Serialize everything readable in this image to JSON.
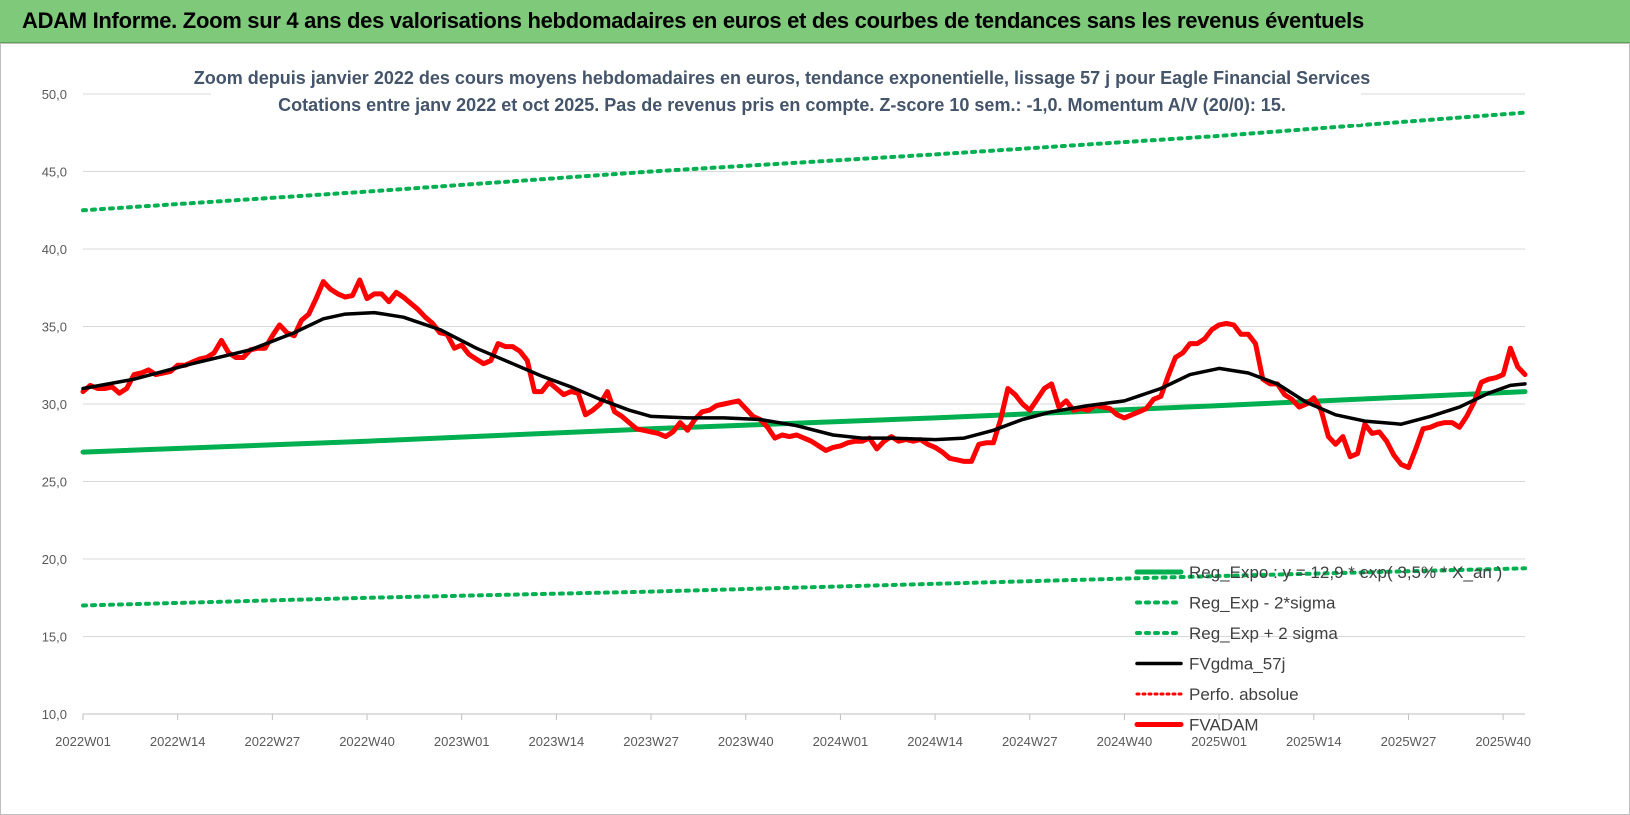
{
  "banner": {
    "title": "ADAM Informe. Zoom sur 4 ans des valorisations hebdomadaires en euros et des courbes de tendances sans les revenus éventuels",
    "color": "#7ec97a"
  },
  "chart_data": {
    "type": "line",
    "title": "Zoom depuis janvier 2022 des cours moyens hebdomadaires en euros, tendance exponentielle, lissage 57 j pour Eagle Financial Services",
    "subtitle": "Cotations entre janv 2022 et oct 2025. Pas de revenus pris en compte. Z-score 10 sem.: -1,0. Momentum A/V (20/0): 15.",
    "xlabel": "",
    "ylabel": "",
    "ylim": [
      10,
      50
    ],
    "yticks": [
      "10,0",
      "15,0",
      "20,0",
      "25,0",
      "30,0",
      "35,0",
      "40,0",
      "45,0",
      "50,0"
    ],
    "xlim": [
      1,
      199
    ],
    "xticks": [
      {
        "label": "2022W01",
        "x": 1
      },
      {
        "label": "2022W14",
        "x": 14
      },
      {
        "label": "2022W27",
        "x": 27
      },
      {
        "label": "2022W40",
        "x": 40
      },
      {
        "label": "2023W01",
        "x": 53
      },
      {
        "label": "2023W14",
        "x": 66
      },
      {
        "label": "2023W27",
        "x": 79
      },
      {
        "label": "2023W40",
        "x": 92
      },
      {
        "label": "2024W01",
        "x": 105
      },
      {
        "label": "2024W14",
        "x": 118
      },
      {
        "label": "2024W27",
        "x": 131
      },
      {
        "label": "2024W40",
        "x": 144
      },
      {
        "label": "2025W01",
        "x": 157
      },
      {
        "label": "2025W14",
        "x": 170
      },
      {
        "label": "2025W27",
        "x": 183
      },
      {
        "label": "2025W40",
        "x": 196
      }
    ],
    "grid": "horizontal",
    "legend_position": "bottom-right",
    "series": [
      {
        "name": "Reg_Expo : y = 12,9 * exp( 3,5% * X_an )",
        "color": "#00b050",
        "style": "solid",
        "width": 5,
        "points": [
          [
            1,
            26.9
          ],
          [
            40,
            27.6
          ],
          [
            79,
            28.4
          ],
          [
            118,
            29.1
          ],
          [
            157,
            29.9
          ],
          [
            199,
            30.8
          ]
        ]
      },
      {
        "name": "Reg_Exp - 2*sigma",
        "color": "#00b050",
        "style": "dotted",
        "width": 4,
        "points": [
          [
            1,
            17.0
          ],
          [
            40,
            17.5
          ],
          [
            79,
            17.9
          ],
          [
            118,
            18.4
          ],
          [
            157,
            18.9
          ],
          [
            199,
            19.4
          ]
        ]
      },
      {
        "name": "Reg_Exp + 2 sigma",
        "color": "#00b050",
        "style": "dotted",
        "width": 4,
        "points": [
          [
            1,
            42.5
          ],
          [
            40,
            43.7
          ],
          [
            79,
            45.0
          ],
          [
            118,
            46.1
          ],
          [
            157,
            47.3
          ],
          [
            199,
            48.8
          ]
        ]
      },
      {
        "name": "FVgdma_57j",
        "color": "#000000",
        "style": "solid",
        "width": 3.5,
        "points": [
          [
            1,
            31.0
          ],
          [
            8,
            31.6
          ],
          [
            16,
            32.6
          ],
          [
            24,
            33.5
          ],
          [
            30,
            34.6
          ],
          [
            34,
            35.5
          ],
          [
            37,
            35.8
          ],
          [
            41,
            35.9
          ],
          [
            45,
            35.6
          ],
          [
            50,
            34.8
          ],
          [
            55,
            33.6
          ],
          [
            60,
            32.6
          ],
          [
            64,
            31.8
          ],
          [
            68,
            31.1
          ],
          [
            72,
            30.3
          ],
          [
            76,
            29.6
          ],
          [
            79,
            29.2
          ],
          [
            84,
            29.1
          ],
          [
            89,
            29.1
          ],
          [
            94,
            29.0
          ],
          [
            99,
            28.6
          ],
          [
            104,
            28.0
          ],
          [
            108,
            27.8
          ],
          [
            112,
            27.8
          ],
          [
            118,
            27.7
          ],
          [
            122,
            27.8
          ],
          [
            126,
            28.3
          ],
          [
            130,
            29.0
          ],
          [
            134,
            29.5
          ],
          [
            139,
            29.9
          ],
          [
            144,
            30.2
          ],
          [
            149,
            31.0
          ],
          [
            153,
            31.9
          ],
          [
            157,
            32.3
          ],
          [
            161,
            32.0
          ],
          [
            165,
            31.3
          ],
          [
            169,
            30.1
          ],
          [
            173,
            29.3
          ],
          [
            177,
            28.9
          ],
          [
            182,
            28.7
          ],
          [
            186,
            29.2
          ],
          [
            190,
            29.8
          ],
          [
            194,
            30.7
          ],
          [
            197,
            31.2
          ],
          [
            199,
            31.3
          ]
        ]
      },
      {
        "name": "Perfo. absolue",
        "color": "#ff0000",
        "style": "dotted",
        "width": 3,
        "points": []
      },
      {
        "name": "FVADAM",
        "color": "#ff0000",
        "style": "solid",
        "width": 5,
        "points": [
          [
            1,
            30.8
          ],
          [
            2,
            31.2
          ],
          [
            3,
            31.0
          ],
          [
            4,
            31.0
          ],
          [
            5,
            31.1
          ],
          [
            6,
            30.7
          ],
          [
            7,
            31.0
          ],
          [
            8,
            31.9
          ],
          [
            9,
            32.0
          ],
          [
            10,
            32.2
          ],
          [
            11,
            31.9
          ],
          [
            12,
            32.0
          ],
          [
            13,
            32.1
          ],
          [
            14,
            32.5
          ],
          [
            15,
            32.5
          ],
          [
            16,
            32.7
          ],
          [
            17,
            32.9
          ],
          [
            18,
            33.0
          ],
          [
            19,
            33.3
          ],
          [
            20,
            34.1
          ],
          [
            21,
            33.3
          ],
          [
            22,
            33.0
          ],
          [
            23,
            33.0
          ],
          [
            24,
            33.5
          ],
          [
            25,
            33.6
          ],
          [
            26,
            33.6
          ],
          [
            27,
            34.4
          ],
          [
            28,
            35.1
          ],
          [
            29,
            34.6
          ],
          [
            30,
            34.4
          ],
          [
            31,
            35.4
          ],
          [
            32,
            35.8
          ],
          [
            33,
            36.8
          ],
          [
            34,
            37.9
          ],
          [
            35,
            37.4
          ],
          [
            36,
            37.1
          ],
          [
            37,
            36.9
          ],
          [
            38,
            37.0
          ],
          [
            39,
            38.0
          ],
          [
            40,
            36.8
          ],
          [
            41,
            37.1
          ],
          [
            42,
            37.1
          ],
          [
            43,
            36.6
          ],
          [
            44,
            37.2
          ],
          [
            45,
            36.9
          ],
          [
            46,
            36.5
          ],
          [
            47,
            36.1
          ],
          [
            48,
            35.6
          ],
          [
            49,
            35.2
          ],
          [
            50,
            34.6
          ],
          [
            51,
            34.5
          ],
          [
            52,
            33.6
          ],
          [
            53,
            33.8
          ],
          [
            54,
            33.2
          ],
          [
            55,
            32.9
          ],
          [
            56,
            32.6
          ],
          [
            57,
            32.8
          ],
          [
            58,
            33.9
          ],
          [
            59,
            33.7
          ],
          [
            60,
            33.7
          ],
          [
            61,
            33.4
          ],
          [
            62,
            32.8
          ],
          [
            63,
            30.8
          ],
          [
            64,
            30.8
          ],
          [
            65,
            31.4
          ],
          [
            66,
            31.0
          ],
          [
            67,
            30.6
          ],
          [
            68,
            30.8
          ],
          [
            69,
            30.7
          ],
          [
            70,
            29.3
          ],
          [
            71,
            29.6
          ],
          [
            72,
            30.0
          ],
          [
            73,
            30.8
          ],
          [
            74,
            29.5
          ],
          [
            75,
            29.2
          ],
          [
            76,
            28.8
          ],
          [
            77,
            28.4
          ],
          [
            78,
            28.3
          ],
          [
            79,
            28.2
          ],
          [
            80,
            28.1
          ],
          [
            81,
            27.9
          ],
          [
            82,
            28.2
          ],
          [
            83,
            28.8
          ],
          [
            84,
            28.3
          ],
          [
            85,
            29.0
          ],
          [
            86,
            29.5
          ],
          [
            87,
            29.6
          ],
          [
            88,
            29.9
          ],
          [
            89,
            30.0
          ],
          [
            90,
            30.1
          ],
          [
            91,
            30.2
          ],
          [
            92,
            29.7
          ],
          [
            93,
            29.2
          ],
          [
            94,
            29.0
          ],
          [
            95,
            28.5
          ],
          [
            96,
            27.8
          ],
          [
            97,
            28.0
          ],
          [
            98,
            27.9
          ],
          [
            99,
            28.0
          ],
          [
            100,
            27.8
          ],
          [
            101,
            27.6
          ],
          [
            102,
            27.3
          ],
          [
            103,
            27.0
          ],
          [
            104,
            27.2
          ],
          [
            105,
            27.3
          ],
          [
            106,
            27.5
          ],
          [
            107,
            27.6
          ],
          [
            108,
            27.6
          ],
          [
            109,
            27.8
          ],
          [
            110,
            27.1
          ],
          [
            111,
            27.6
          ],
          [
            112,
            27.9
          ],
          [
            113,
            27.6
          ],
          [
            114,
            27.7
          ],
          [
            115,
            27.6
          ],
          [
            116,
            27.7
          ],
          [
            117,
            27.4
          ],
          [
            118,
            27.2
          ],
          [
            119,
            26.9
          ],
          [
            120,
            26.5
          ],
          [
            121,
            26.4
          ],
          [
            122,
            26.3
          ],
          [
            123,
            26.3
          ],
          [
            124,
            27.4
          ],
          [
            125,
            27.5
          ],
          [
            126,
            27.5
          ],
          [
            127,
            29.0
          ],
          [
            128,
            31.0
          ],
          [
            129,
            30.6
          ],
          [
            130,
            30.0
          ],
          [
            131,
            29.6
          ],
          [
            132,
            30.3
          ],
          [
            133,
            31.0
          ],
          [
            134,
            31.3
          ],
          [
            135,
            29.8
          ],
          [
            136,
            30.2
          ],
          [
            137,
            29.6
          ],
          [
            138,
            29.7
          ],
          [
            139,
            29.6
          ],
          [
            140,
            29.9
          ],
          [
            141,
            29.8
          ],
          [
            142,
            29.7
          ],
          [
            143,
            29.3
          ],
          [
            144,
            29.1
          ],
          [
            145,
            29.3
          ],
          [
            146,
            29.5
          ],
          [
            147,
            29.7
          ],
          [
            148,
            30.3
          ],
          [
            149,
            30.5
          ],
          [
            150,
            31.8
          ],
          [
            151,
            33.0
          ],
          [
            152,
            33.3
          ],
          [
            153,
            33.9
          ],
          [
            154,
            33.9
          ],
          [
            155,
            34.2
          ],
          [
            156,
            34.8
          ],
          [
            157,
            35.1
          ],
          [
            158,
            35.2
          ],
          [
            159,
            35.1
          ],
          [
            160,
            34.5
          ],
          [
            161,
            34.5
          ],
          [
            162,
            33.9
          ],
          [
            163,
            31.6
          ],
          [
            164,
            31.3
          ],
          [
            165,
            31.3
          ],
          [
            166,
            30.6
          ],
          [
            167,
            30.3
          ],
          [
            168,
            29.8
          ],
          [
            169,
            30.0
          ],
          [
            170,
            30.4
          ],
          [
            171,
            29.6
          ],
          [
            172,
            27.9
          ],
          [
            173,
            27.4
          ],
          [
            174,
            27.9
          ],
          [
            175,
            26.6
          ],
          [
            176,
            26.8
          ],
          [
            177,
            28.7
          ],
          [
            178,
            28.1
          ],
          [
            179,
            28.2
          ],
          [
            180,
            27.6
          ],
          [
            181,
            26.7
          ],
          [
            182,
            26.1
          ],
          [
            183,
            25.9
          ],
          [
            184,
            27.1
          ],
          [
            185,
            28.4
          ],
          [
            186,
            28.5
          ],
          [
            187,
            28.7
          ],
          [
            188,
            28.8
          ],
          [
            189,
            28.8
          ],
          [
            190,
            28.5
          ],
          [
            191,
            29.2
          ],
          [
            192,
            30.1
          ],
          [
            193,
            31.4
          ],
          [
            194,
            31.6
          ],
          [
            195,
            31.7
          ],
          [
            196,
            31.9
          ],
          [
            197,
            33.6
          ],
          [
            198,
            32.4
          ],
          [
            199,
            31.9
          ]
        ]
      }
    ]
  }
}
